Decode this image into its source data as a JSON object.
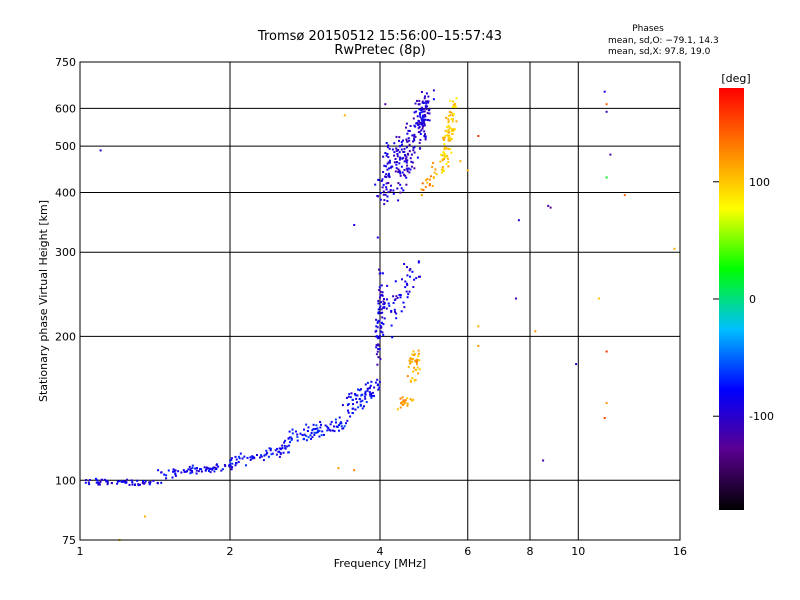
{
  "chart_data": {
    "type": "scatter",
    "title": "Tromsø 20150512 15:56:00–15:57:43",
    "subtitle": "RwPretec (8p)",
    "phases_header": "Phases",
    "phases_o": "mean, sd,O: −79.1, 14.3",
    "phases_x": "mean, sd,X:  97.8, 19.0",
    "xlabel": "Frequency [MHz]",
    "ylabel": "Stationary phase Virtual Height [km]",
    "xscale": "log",
    "yscale": "log",
    "xlim": [
      1,
      16
    ],
    "ylim": [
      75,
      750
    ],
    "xticks": [
      1,
      2,
      4,
      6,
      8,
      10,
      16
    ],
    "yticks": [
      75,
      100,
      200,
      300,
      400,
      500,
      600,
      750
    ],
    "grid": true,
    "colorbar": {
      "label": "[deg]",
      "range": [
        -180,
        180
      ],
      "ticks": [
        100,
        0,
        -100
      ],
      "colormap": [
        "#000000",
        "#5a0090",
        "#0000ff",
        "#00bfff",
        "#00ff00",
        "#ffff00",
        "#ff8000",
        "#ff0000"
      ]
    },
    "series": [
      {
        "segments": [
          {
            "x0": 1.0,
            "x1": 1.45,
            "y0": 100,
            "y1": 98,
            "n": 60,
            "phase": -90,
            "jit": 0.025
          },
          {
            "x0": 1.45,
            "x1": 2.0,
            "y0": 102,
            "y1": 108,
            "n": 70,
            "phase": -85,
            "jit": 0.03
          },
          {
            "x0": 2.0,
            "x1": 2.6,
            "y0": 108,
            "y1": 118,
            "n": 60,
            "phase": -80,
            "jit": 0.04
          },
          {
            "x0": 2.6,
            "x1": 3.4,
            "y0": 118,
            "y1": 135,
            "n": 80,
            "phase": -75,
            "jit": 0.05
          },
          {
            "x0": 3.4,
            "x1": 3.95,
            "y0": 135,
            "y1": 165,
            "n": 70,
            "phase": -80,
            "jit": 0.05
          },
          {
            "x0": 3.95,
            "x1": 4.05,
            "y0": 160,
            "y1": 290,
            "n": 60,
            "phase": -95,
            "jit": 0.03
          },
          {
            "x0": 4.05,
            "x1": 4.7,
            "y0": 200,
            "y1": 290,
            "n": 60,
            "phase": -90,
            "jit": 0.08
          },
          {
            "x0": 4.6,
            "x1": 4.75,
            "y0": 155,
            "y1": 190,
            "n": 40,
            "phase": 110,
            "jit": 0.04
          },
          {
            "x0": 4.35,
            "x1": 4.6,
            "y0": 140,
            "y1": 150,
            "n": 20,
            "phase": 115,
            "jit": 0.04
          },
          {
            "x0": 4.0,
            "x1": 4.25,
            "y0": 370,
            "y1": 520,
            "n": 60,
            "phase": -95,
            "jit": 0.06
          },
          {
            "x0": 4.25,
            "x1": 4.95,
            "y0": 380,
            "y1": 650,
            "n": 160,
            "phase": -100,
            "jit": 0.07
          },
          {
            "x0": 4.8,
            "x1": 5.05,
            "y0": 550,
            "y1": 650,
            "n": 40,
            "phase": -90,
            "jit": 0.04
          },
          {
            "x0": 5.35,
            "x1": 5.65,
            "y0": 430,
            "y1": 650,
            "n": 90,
            "phase": 100,
            "jit": 0.03
          },
          {
            "x0": 4.8,
            "x1": 5.2,
            "y0": 380,
            "y1": 470,
            "n": 20,
            "phase": 120,
            "jit": 0.04
          }
        ],
        "scattered": [
          [
            1.1,
            490,
            -100
          ],
          [
            1.2,
            75,
            100
          ],
          [
            1.35,
            84,
            110
          ],
          [
            3.4,
            580,
            110
          ],
          [
            3.55,
            105,
            130
          ],
          [
            3.3,
            106,
            120
          ],
          [
            6.3,
            525,
            160
          ],
          [
            6.3,
            210,
            110
          ],
          [
            6.3,
            191,
            120
          ],
          [
            7.6,
            350,
            -100
          ],
          [
            7.5,
            240,
            -110
          ],
          [
            8.2,
            205,
            120
          ],
          [
            8.7,
            375,
            -120
          ],
          [
            8.8,
            372,
            -130
          ],
          [
            8.5,
            110,
            -110
          ],
          [
            9.9,
            175,
            -100
          ],
          [
            11.3,
            650,
            -90
          ],
          [
            11.4,
            612,
            140
          ],
          [
            11.4,
            590,
            -110
          ],
          [
            11.6,
            480,
            -120
          ],
          [
            11.4,
            430,
            20
          ],
          [
            11.0,
            240,
            100
          ],
          [
            11.4,
            186,
            160
          ],
          [
            11.4,
            145,
            120
          ],
          [
            11.3,
            135,
            150
          ],
          [
            12.4,
            395,
            140
          ],
          [
            15.6,
            305,
            110
          ],
          [
            3.55,
            342,
            -90
          ],
          [
            3.96,
            322,
            -90
          ],
          [
            4.1,
            612,
            -120
          ],
          [
            5.8,
            465,
            110
          ],
          [
            6.0,
            445,
            110
          ]
        ]
      }
    ]
  }
}
